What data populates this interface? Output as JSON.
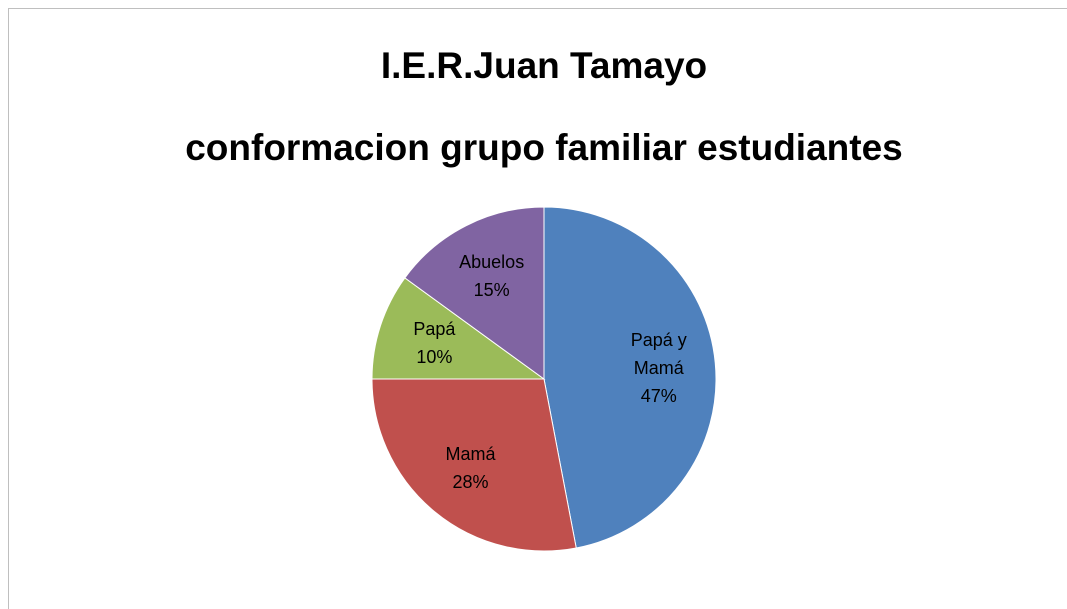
{
  "chart_data": {
    "type": "pie",
    "title": [
      "I.E.R.Juan Tamayo",
      "conformacion grupo familiar estudiantes"
    ],
    "categories": [
      "Papá  y Mamá",
      "Mamá",
      "Papá",
      "Abuelos"
    ],
    "values": [
      47,
      28,
      10,
      15
    ],
    "value_labels": [
      "47%",
      "28%",
      "10%",
      "15%"
    ],
    "colors": [
      "#4f81bd",
      "#c0504d",
      "#9bbb59",
      "#8064a2"
    ]
  }
}
